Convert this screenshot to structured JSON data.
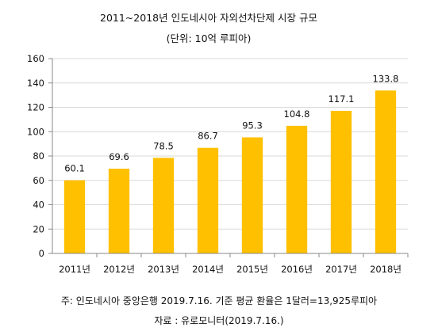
{
  "chart_data": {
    "type": "bar",
    "title": "2011~2018년 인도네시아 자외선차단제 시장 규모",
    "subtitle": "(단위: 10억 루피아)",
    "categories": [
      "2011년",
      "2012년",
      "2013년",
      "2014년",
      "2015년",
      "2016년",
      "2017년",
      "2018년"
    ],
    "values": [
      60.1,
      69.6,
      78.5,
      86.7,
      95.3,
      104.8,
      117.1,
      133.8
    ],
    "data_labels": [
      "60.1",
      "69.6",
      "78.5",
      "86.7",
      "95.3",
      "104.8",
      "117.1",
      "133.8"
    ],
    "ylim": [
      0,
      160
    ],
    "yticks": [
      0,
      20,
      40,
      60,
      80,
      100,
      120,
      140,
      160
    ],
    "grid": true,
    "legend": "none",
    "bar_color": "#FFC000",
    "grid_color": "#d9d9d9",
    "xlabel": "",
    "ylabel": ""
  },
  "notes": {
    "line1": "주: 인도네시아 중앙은행 2019.7.16. 기준 평균 환율은 1달러=13,925루피아",
    "line2": "자료 : 유로모니터(2019.7.16.)"
  }
}
